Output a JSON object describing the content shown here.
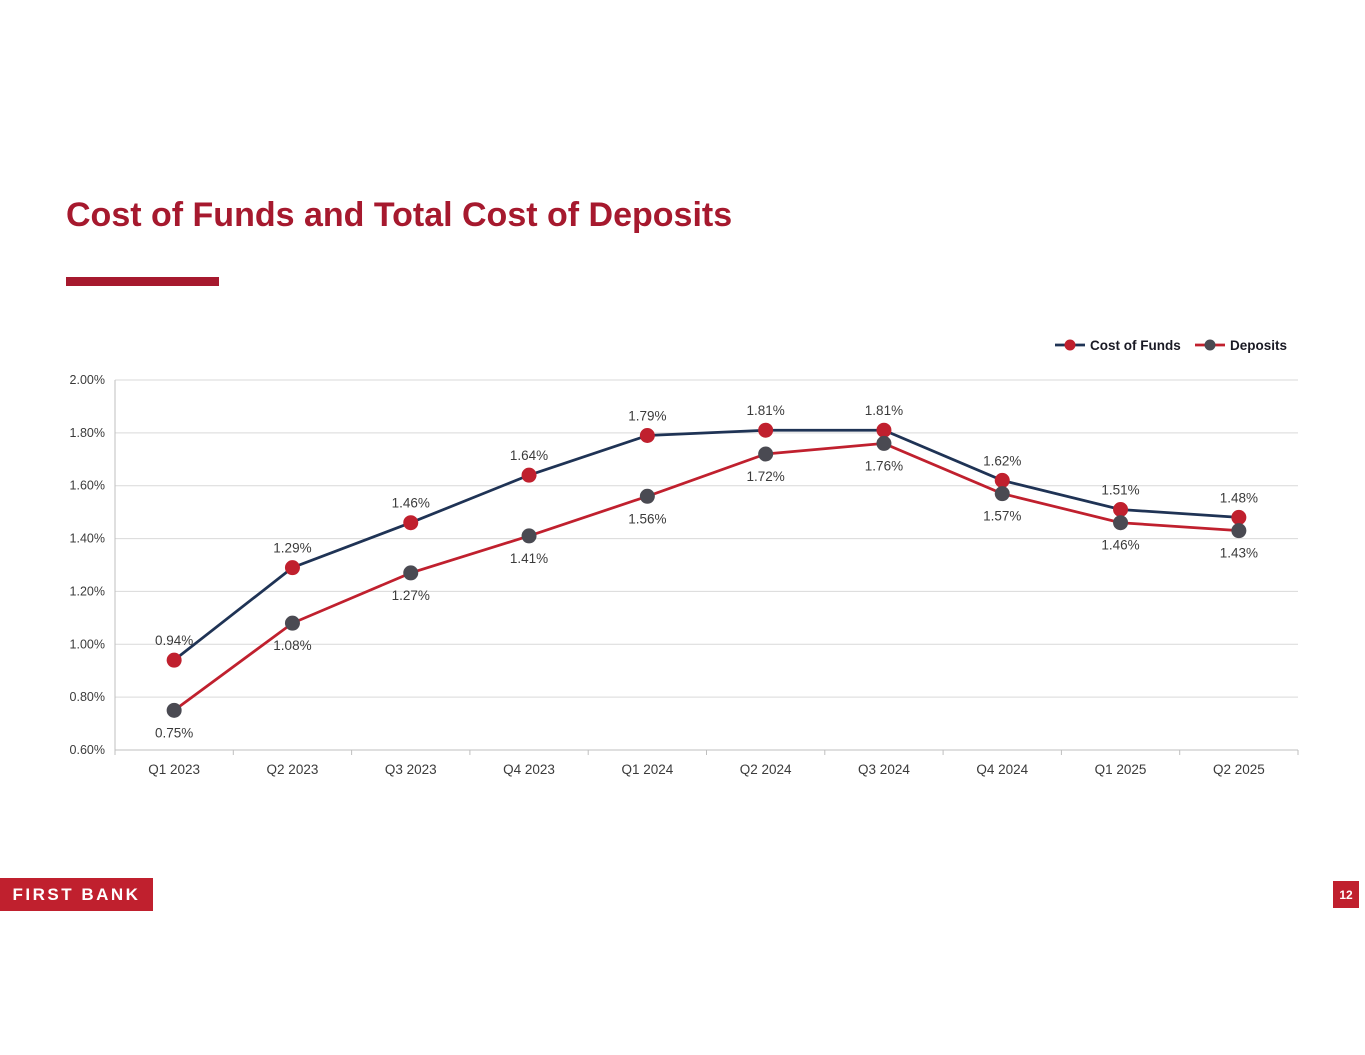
{
  "slide": {
    "title": "Cost of Funds and Total Cost of Deposits",
    "footer_brand": "FIRST BANK",
    "page_number": "12"
  },
  "colors": {
    "title": "#A6192E",
    "accent_red": "#C0202E",
    "navy": "#1F3355",
    "marker_gray": "#4A4A52",
    "grid": "#D9D9D9",
    "axis_line": "#BFBFBF",
    "axis_text": "#3B3B3B",
    "legend_text": "#1A1A24"
  },
  "chart_data": {
    "type": "line",
    "title": "Cost of Funds and Total Cost of Deposits",
    "categories": [
      "Q1 2023",
      "Q2 2023",
      "Q3 2023",
      "Q4 2023",
      "Q1 2024",
      "Q2 2024",
      "Q3 2024",
      "Q4 2024",
      "Q1 2025",
      "Q2 2025"
    ],
    "series": [
      {
        "name": "Cost of Funds",
        "values": [
          0.94,
          1.29,
          1.46,
          1.64,
          1.79,
          1.81,
          1.81,
          1.62,
          1.51,
          1.48
        ],
        "labels": [
          "0.94%",
          "1.29%",
          "1.46%",
          "1.64%",
          "1.79%",
          "1.81%",
          "1.81%",
          "1.62%",
          "1.51%",
          "1.48%"
        ],
        "line_color": "#1F3355",
        "marker_color": "#C0202E",
        "label_position": "above"
      },
      {
        "name": "Deposits",
        "values": [
          0.75,
          1.08,
          1.27,
          1.41,
          1.56,
          1.72,
          1.76,
          1.57,
          1.46,
          1.43
        ],
        "labels": [
          "0.75%",
          "1.08%",
          "1.27%",
          "1.41%",
          "1.56%",
          "1.72%",
          "1.76%",
          "1.57%",
          "1.46%",
          "1.43%"
        ],
        "line_color": "#C0202E",
        "marker_color": "#4A4A52",
        "label_position": "below"
      }
    ],
    "ylim": [
      0.6,
      2.0
    ],
    "ytick_step": 0.2,
    "ytick_labels": [
      "0.60%",
      "0.80%",
      "1.00%",
      "1.20%",
      "1.40%",
      "1.60%",
      "1.80%",
      "2.00%"
    ],
    "grid": true,
    "legend_position": "top-right"
  }
}
